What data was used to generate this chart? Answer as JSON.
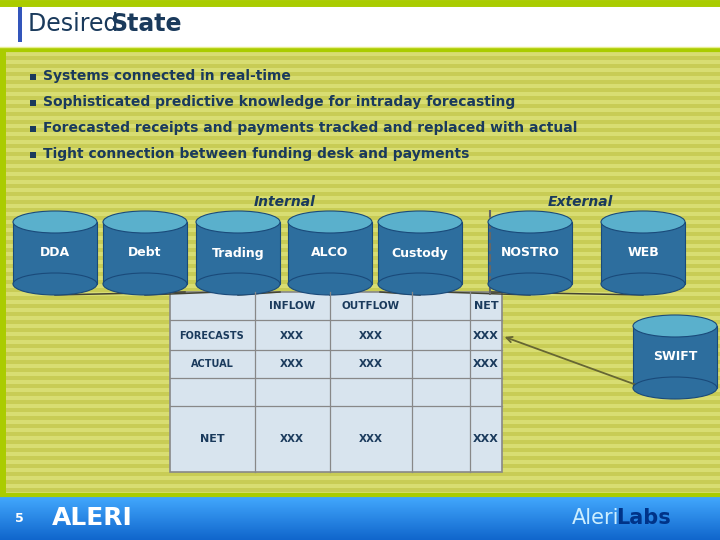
{
  "title_normal": "Desired ",
  "title_bold": "State",
  "title_color": "#1a3a5c",
  "bullets": [
    "Systems connected in real-time",
    "Sophisticated predictive knowledge for intraday forecasting",
    "Forecasted receipts and payments tracked and replaced with actual",
    "Tight connection between funding desk and payments"
  ],
  "bullet_color": "#1a3a5c",
  "bg_color": "#d4d970",
  "stripe_light": "#d8dd72",
  "stripe_dark": "#c8cc55",
  "header_bg": "#f8f8f0",
  "internal_label": "Internal",
  "external_label": "External",
  "cyl_color_top": "#5ab0cc",
  "cyl_color_body": "#2d6e9e",
  "cyl_color_edge": "#1a4a7a",
  "table_bg": "#d8e4ee",
  "table_edge": "#888888",
  "text_dark": "#1a3a5c",
  "footer_blue": "#1a88ee",
  "gold_line": "#aacc00",
  "left_bar_color": "#3355bb",
  "page_num": "5"
}
